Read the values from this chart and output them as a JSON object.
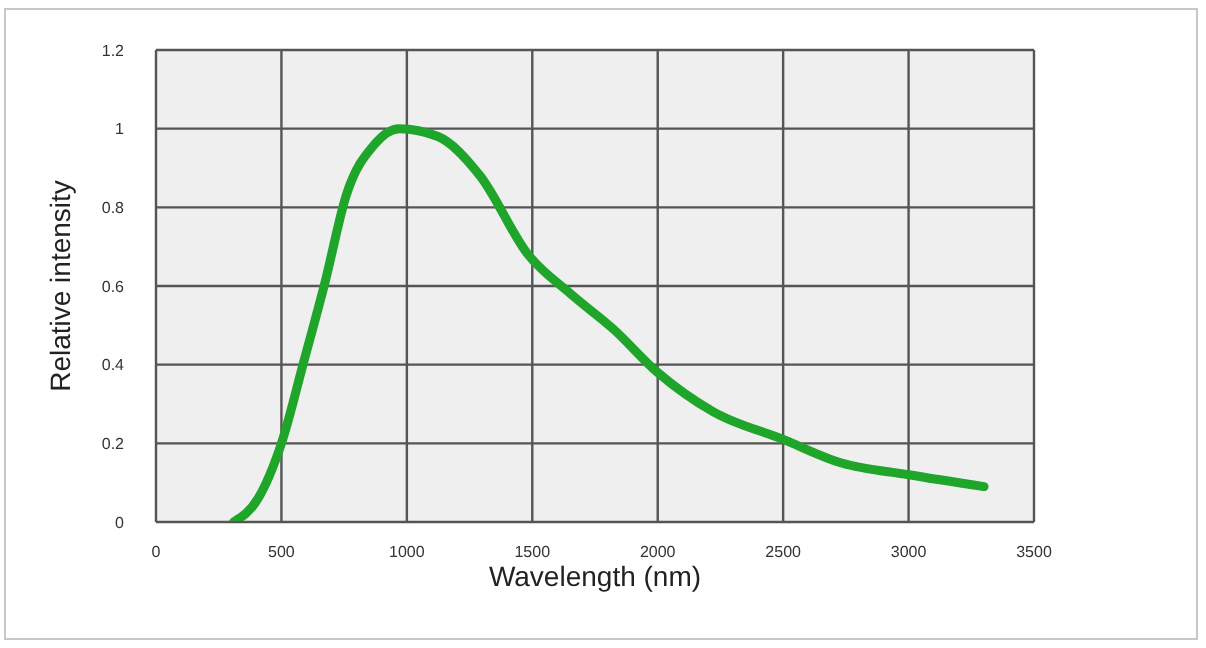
{
  "chart_data": {
    "type": "line",
    "xlabel": "Wavelength (nm)",
    "ylabel": "Relative intensity",
    "series": [
      {
        "color": "#1ea52a",
        "x": [
          309,
          407,
          500,
          590,
          674,
          758,
          871,
          969,
          1124,
          1292,
          1483,
          1653,
          1824,
          2000,
          2222,
          2500,
          2733,
          3000,
          3301
        ],
        "values": [
          0,
          0.06,
          0.2,
          0.41,
          0.61,
          0.83,
          0.96,
          1.0,
          0.98,
          0.88,
          0.68,
          0.58,
          0.49,
          0.38,
          0.28,
          0.21,
          0.15,
          0.12,
          0.09
        ]
      }
    ],
    "xlim": [
      0,
      3500
    ],
    "xticks": [
      0,
      500,
      1000,
      1500,
      2000,
      2500,
      3000,
      3500
    ],
    "ylim": [
      0,
      1.2
    ],
    "yticks": [
      0,
      0.2,
      0.4,
      0.6,
      0.8,
      1,
      1.2
    ],
    "grid": true,
    "marker": "none",
    "line_style": "solid"
  }
}
